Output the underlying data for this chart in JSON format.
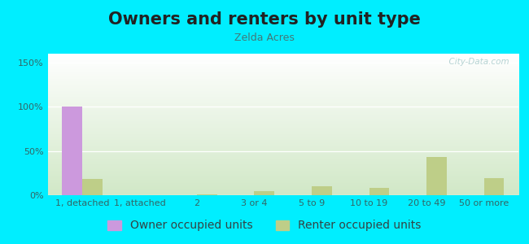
{
  "title": "Owners and renters by unit type",
  "subtitle": "Zelda Acres",
  "categories": [
    "1, detached",
    "1, attached",
    "2",
    "3 or 4",
    "5 to 9",
    "10 to 19",
    "20 to 49",
    "50 or more"
  ],
  "owner_values": [
    100,
    0,
    0,
    0,
    0,
    0,
    0,
    0
  ],
  "renter_values": [
    18,
    0,
    1,
    5,
    10,
    8,
    43,
    19
  ],
  "owner_color": "#cc99dd",
  "renter_color": "#bece88",
  "background_outer": "#00eeff",
  "ylim": [
    0,
    160
  ],
  "yticks": [
    0,
    50,
    100,
    150
  ],
  "ytick_labels": [
    "0%",
    "50%",
    "100%",
    "150%"
  ],
  "bar_width": 0.35,
  "title_fontsize": 15,
  "subtitle_fontsize": 9,
  "legend_fontsize": 10,
  "tick_fontsize": 8,
  "watermark": "  City-Data.com"
}
